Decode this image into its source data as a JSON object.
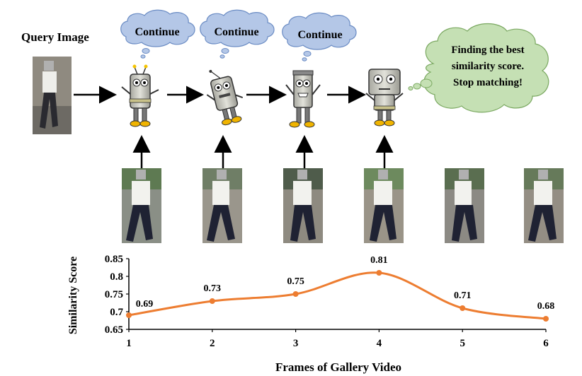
{
  "query_label": "Query Image",
  "agent_steps": [
    {
      "bubble": "Continue"
    },
    {
      "bubble": "Continue"
    },
    {
      "bubble": "Continue"
    },
    {
      "bubble": "Finding the best similarity score. Stop matching!",
      "bubble_lines": [
        "Finding the best",
        "similarity score.",
        "Stop matching!"
      ]
    }
  ],
  "colors": {
    "continue_bubble": "#b4c7e7",
    "stop_bubble": "#c5e0b4",
    "line": "#ed7d31",
    "arrow": "#000000"
  },
  "icons": [
    "robot-icon",
    "pedestrian-image"
  ],
  "chart_data": {
    "type": "line",
    "x": [
      1,
      2,
      3,
      4,
      5,
      6
    ],
    "series": [
      {
        "values": [
          0.69,
          0.73,
          0.75,
          0.81,
          0.71,
          0.68
        ]
      }
    ],
    "data_labels": [
      "0.69",
      "0.73",
      "0.75",
      "0.81",
      "0.71",
      "0.68"
    ],
    "xlabel": "Frames of Gallery Video",
    "ylabel": "Similarity Score",
    "yticks": [
      "0.65",
      "0.7",
      "0.75",
      "0.8",
      "0.85"
    ],
    "xticks": [
      "1",
      "2",
      "3",
      "4",
      "5",
      "6"
    ],
    "ylim": [
      0.65,
      0.85
    ],
    "xlim": [
      1,
      6
    ],
    "grid": false,
    "smooth": true
  }
}
